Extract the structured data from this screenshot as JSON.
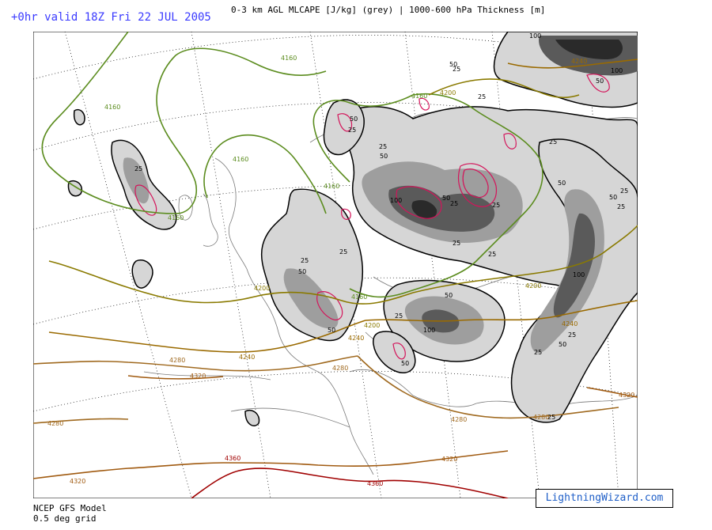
{
  "header": {
    "valid_time": "+0hr valid 18Z Fri 22 JUL 2005",
    "title": "0-3 km AGL MLCAPE [J/kg] (grey) | 1000-600 hPa Thickness [m]"
  },
  "footer": {
    "model": "NCEP GFS Model",
    "grid": "0.5 deg grid",
    "brand": "LightningWizard.com"
  },
  "colors": {
    "cape_light": "#d6d6d6",
    "cape_mid": "#9e9e9e",
    "cape_dark": "#5a5a5a",
    "cape_darkest": "#2a2a2a",
    "cape_magenta": "#d4145a",
    "thickness_4160": "#5b8c1e",
    "thickness_4200": "#8a7a00",
    "thickness_4240": "#9a6a00",
    "thickness_4280": "#a06a20",
    "thickness_4320": "#a05a10",
    "thickness_4360": "#a00000",
    "coast": "#7a7a7a"
  },
  "cape_labels": [
    "25",
    "50",
    "100"
  ],
  "thickness_labels": [
    "4160",
    "4200",
    "4240",
    "4280",
    "4320",
    "4360"
  ]
}
